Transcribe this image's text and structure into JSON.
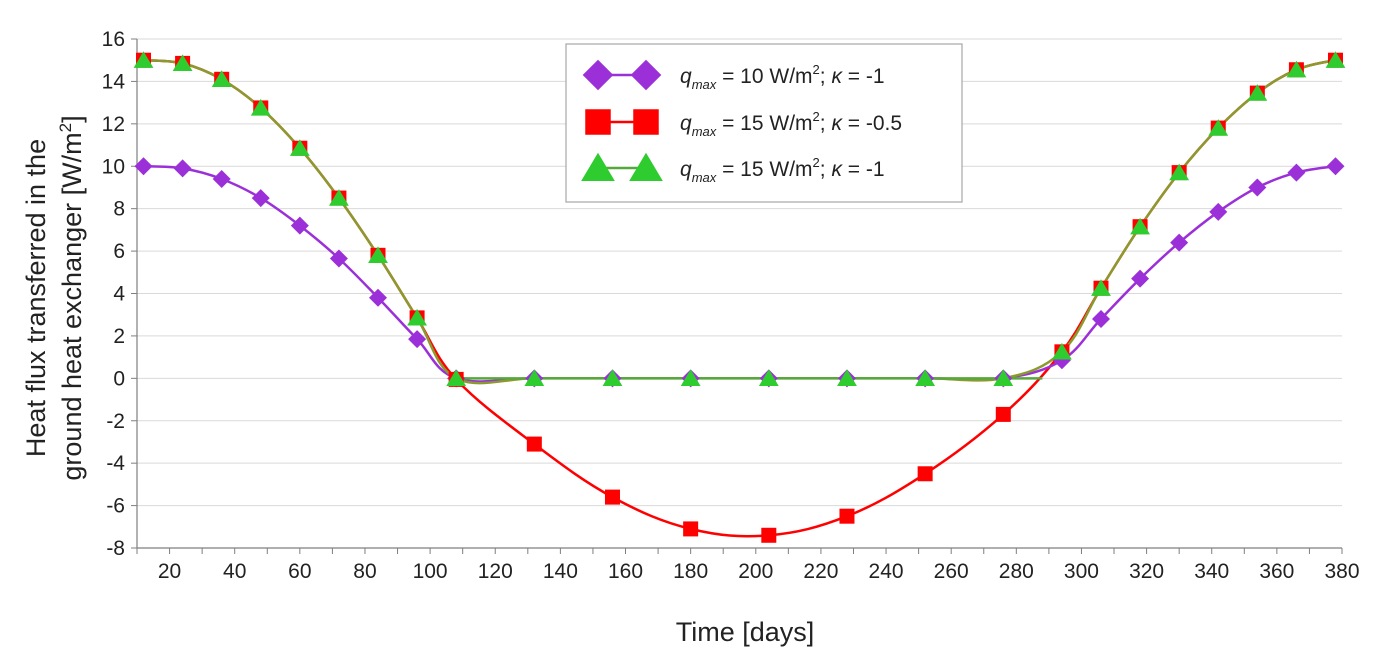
{
  "chart_data": {
    "type": "line",
    "title": "",
    "xlabel": "Time [days]",
    "ylabel_line1": "Heat flux transferred in the",
    "ylabel_line2_prefix": "ground heat exchanger [W/m",
    "ylabel_line2_sup": "2",
    "ylabel_line2_suffix": "]",
    "xlim": [
      10,
      380
    ],
    "ylim": [
      -8,
      16
    ],
    "xticks": [
      20,
      40,
      60,
      80,
      100,
      120,
      140,
      160,
      180,
      200,
      220,
      240,
      260,
      280,
      300,
      320,
      340,
      360,
      380
    ],
    "yticks": [
      -8,
      -6,
      -4,
      -2,
      0,
      2,
      4,
      6,
      8,
      10,
      12,
      14,
      16
    ],
    "legend_position": "top-center",
    "colors": {
      "grid": "#d9d9d9",
      "axis": "#7f7f7f",
      "olive": "#8b9a2e"
    },
    "series": [
      {
        "name": "q_max = 10 W/m2; kappa = -1",
        "legend": {
          "q": "q",
          "sub": "max",
          "mid": " = 10 W/m",
          "sup": "2",
          "sep": "; ",
          "k": "κ",
          "rest": " = -1"
        },
        "marker": "diamond",
        "color": "#9b30d9",
        "line_color": "#9b30d9",
        "x": [
          12,
          24,
          36,
          48,
          60,
          72,
          84,
          96,
          108,
          132,
          156,
          180,
          204,
          228,
          252,
          276,
          294,
          306,
          318,
          330,
          342,
          354,
          366,
          378
        ],
        "values": [
          10.0,
          9.9,
          9.4,
          8.5,
          7.2,
          5.65,
          3.8,
          1.85,
          0,
          0,
          0,
          0,
          0,
          0,
          0,
          0,
          0.85,
          2.8,
          4.7,
          6.4,
          7.85,
          9.0,
          9.7,
          10.0
        ]
      },
      {
        "name": "q_max = 15 W/m2; kappa = -0.5",
        "legend": {
          "q": "q",
          "sub": "max",
          "mid": " = 15 W/m",
          "sup": "2",
          "sep": "; ",
          "k": "κ",
          "rest": " = -0.5"
        },
        "marker": "square",
        "color": "#ff0000",
        "line_color": "#ff0000",
        "x": [
          12,
          24,
          36,
          48,
          60,
          72,
          84,
          96,
          108,
          132,
          156,
          180,
          204,
          228,
          252,
          276,
          294,
          306,
          318,
          330,
          342,
          354,
          366,
          378
        ],
        "values": [
          15.0,
          14.85,
          14.1,
          12.75,
          10.85,
          8.5,
          5.8,
          2.85,
          -0.05,
          -3.1,
          -5.6,
          -7.1,
          -7.4,
          -6.5,
          -4.5,
          -1.7,
          1.25,
          4.25,
          7.15,
          9.7,
          11.8,
          13.45,
          14.55,
          15.0
        ]
      },
      {
        "name": "q_max = 15 W/m2; kappa = -1",
        "legend": {
          "q": "q",
          "sub": "max",
          "mid": " = 15 W/m",
          "sup": "2",
          "sep": "; ",
          "k": "κ",
          "rest": " = -1"
        },
        "marker": "triangle",
        "color": "#2ecc2e",
        "line_color": "#56a83c",
        "x": [
          12,
          24,
          36,
          48,
          60,
          72,
          84,
          96,
          108,
          132,
          156,
          180,
          204,
          228,
          252,
          276,
          294,
          306,
          318,
          330,
          342,
          354,
          366,
          378
        ],
        "values": [
          15.0,
          14.85,
          14.1,
          12.75,
          10.85,
          8.5,
          5.8,
          2.85,
          0,
          0,
          0,
          0,
          0,
          0,
          0,
          0,
          1.25,
          4.25,
          7.15,
          9.7,
          11.8,
          13.45,
          14.55,
          15.0
        ]
      }
    ]
  }
}
